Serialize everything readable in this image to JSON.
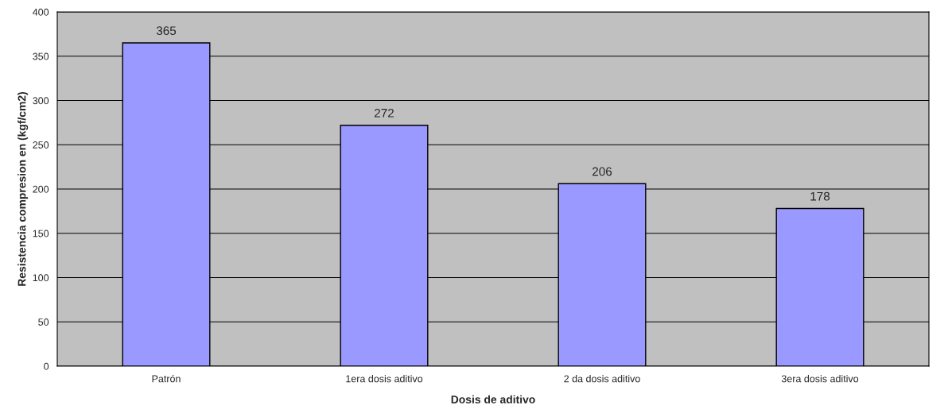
{
  "chart_data": {
    "type": "bar",
    "xlabel": "Dosis de aditivo",
    "ylabel": "Resistencia compresion en (kgf/cm2)",
    "categories": [
      "Patrón",
      "1era dosis aditivo",
      "2 da dosis aditivo",
      "3era dosis aditivo"
    ],
    "values": [
      365,
      272,
      206,
      178
    ],
    "color": "#9999ff",
    "ylim": [
      0,
      400
    ],
    "yticks": [
      0,
      50,
      100,
      150,
      200,
      250,
      300,
      350,
      400
    ],
    "grid": "y",
    "data_labels": true
  }
}
